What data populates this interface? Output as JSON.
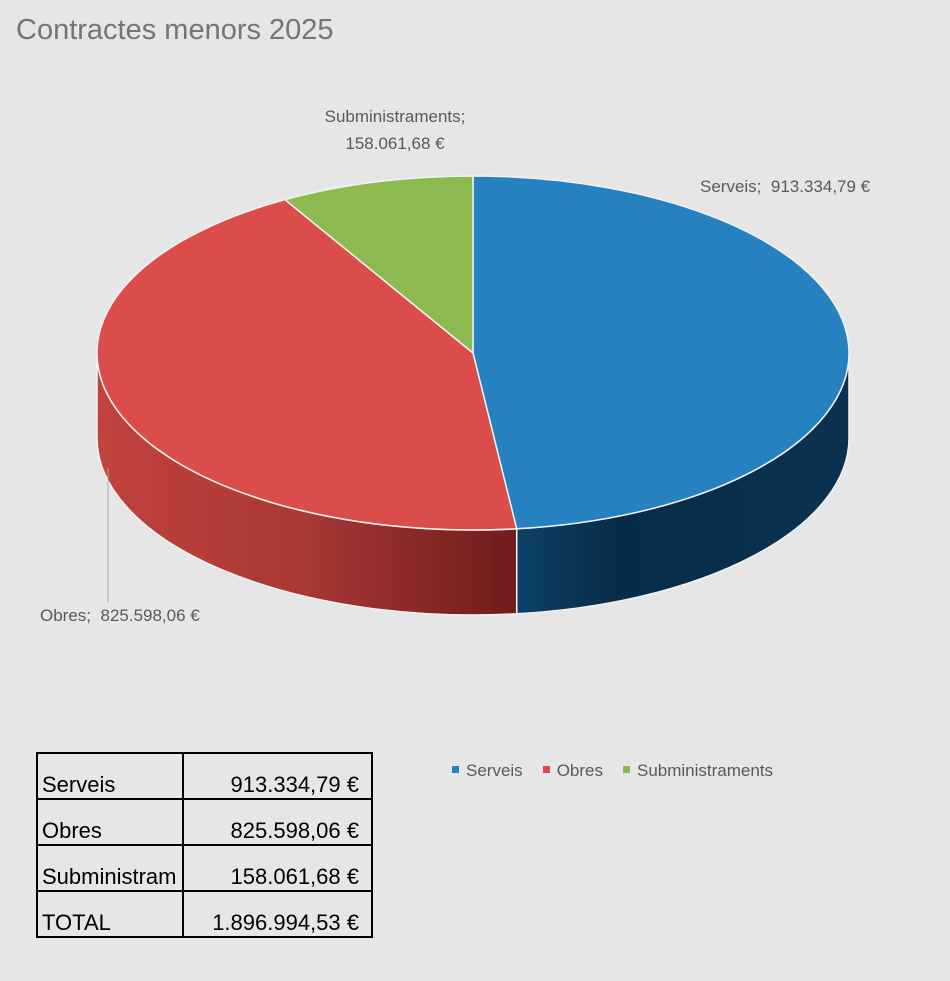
{
  "chart_data": {
    "type": "pie",
    "title": "Contractes menors 2025",
    "style": "3d",
    "categories": [
      "Serveis",
      "Obres",
      "Subministraments"
    ],
    "values": [
      913334.79,
      825598.06,
      158061.68
    ],
    "colors": [
      "#2681c1",
      "#db4d4a",
      "#8cba51"
    ],
    "data_labels": [
      {
        "name": "Serveis;",
        "value": "913.334,79 €"
      },
      {
        "name": "Obres;",
        "value": "825.598,06 €"
      },
      {
        "name": "Subministraments;",
        "value": "158.061,68 €"
      }
    ],
    "legend": {
      "position": "bottom",
      "entries": [
        "Serveis",
        "Obres",
        "Subministraments"
      ]
    }
  },
  "table": {
    "rows": [
      {
        "label": "Serveis",
        "value": "913.334,79 €"
      },
      {
        "label": "Obres",
        "value": "825.598,06 €"
      },
      {
        "label": "Subministram",
        "value": "158.061,68 €"
      },
      {
        "label": "TOTAL",
        "value": "1.896.994,53 €"
      }
    ]
  }
}
